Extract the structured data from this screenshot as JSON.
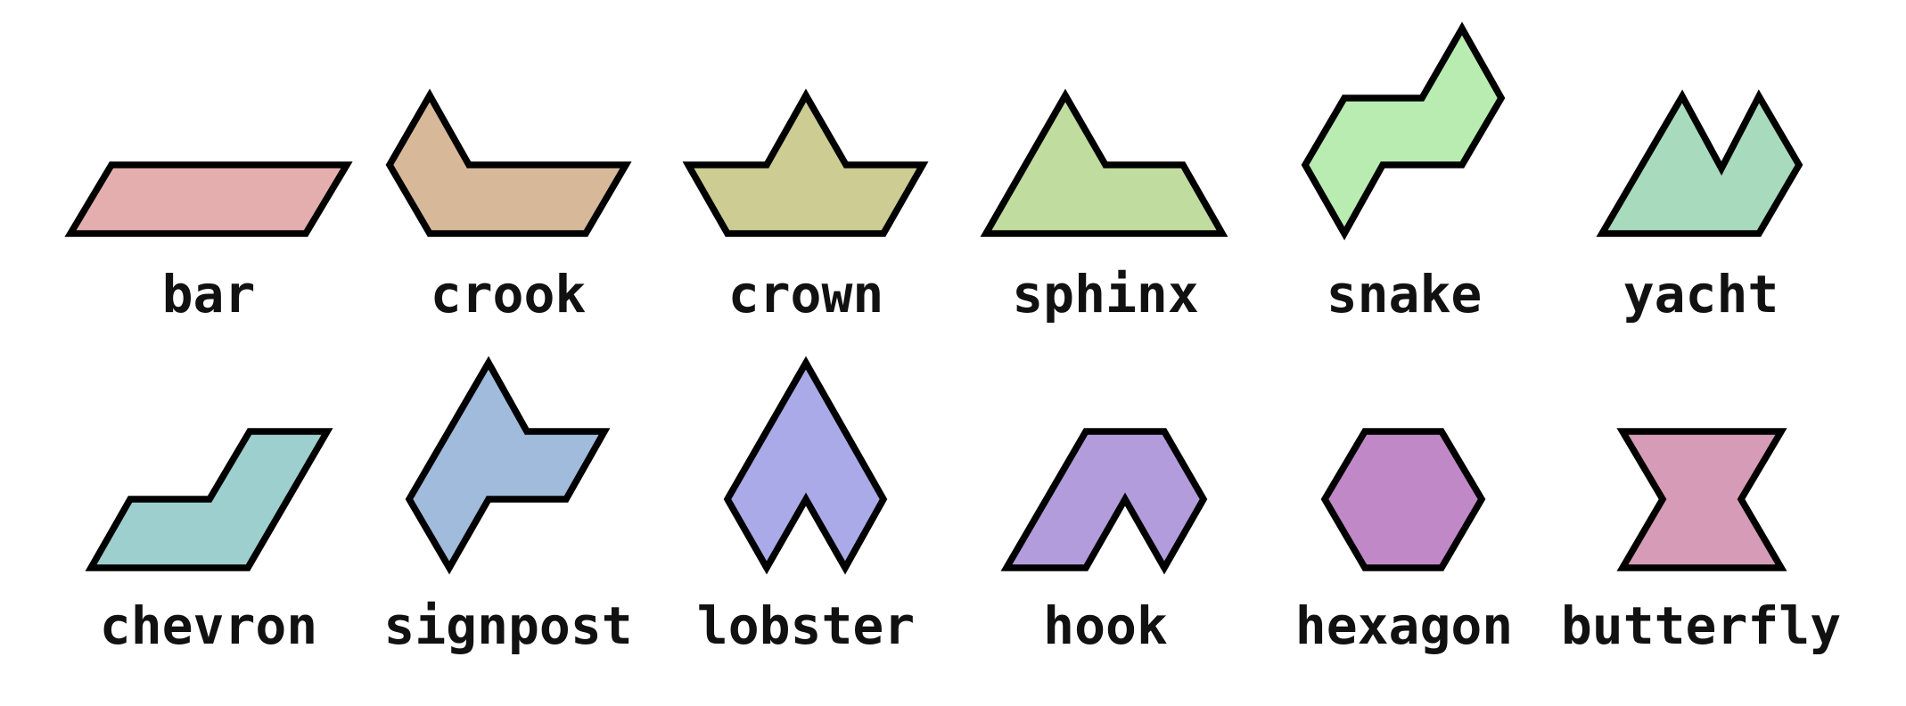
{
  "shapes": [
    {
      "id": "bar",
      "label": "bar",
      "fill": "#e5aeae"
    },
    {
      "id": "crook",
      "label": "crook",
      "fill": "#d7b99a"
    },
    {
      "id": "crown",
      "label": "crown",
      "fill": "#cccc93"
    },
    {
      "id": "sphinx",
      "label": "sphinx",
      "fill": "#c0dc9f"
    },
    {
      "id": "snake",
      "label": "snake",
      "fill": "#b8ecb1"
    },
    {
      "id": "yacht",
      "label": "yacht",
      "fill": "#a8dbbd"
    },
    {
      "id": "chevron",
      "label": "chevron",
      "fill": "#9ccfcd"
    },
    {
      "id": "signpost",
      "label": "signpost",
      "fill": "#a0bbdb"
    },
    {
      "id": "lobster",
      "label": "lobster",
      "fill": "#aaaae8"
    },
    {
      "id": "hook",
      "label": "hook",
      "fill": "#b39cdb"
    },
    {
      "id": "hexagon",
      "label": "hexagon",
      "fill": "#c188c7"
    },
    {
      "id": "butterfly",
      "label": "butterfly",
      "fill": "#d69bb7"
    }
  ]
}
